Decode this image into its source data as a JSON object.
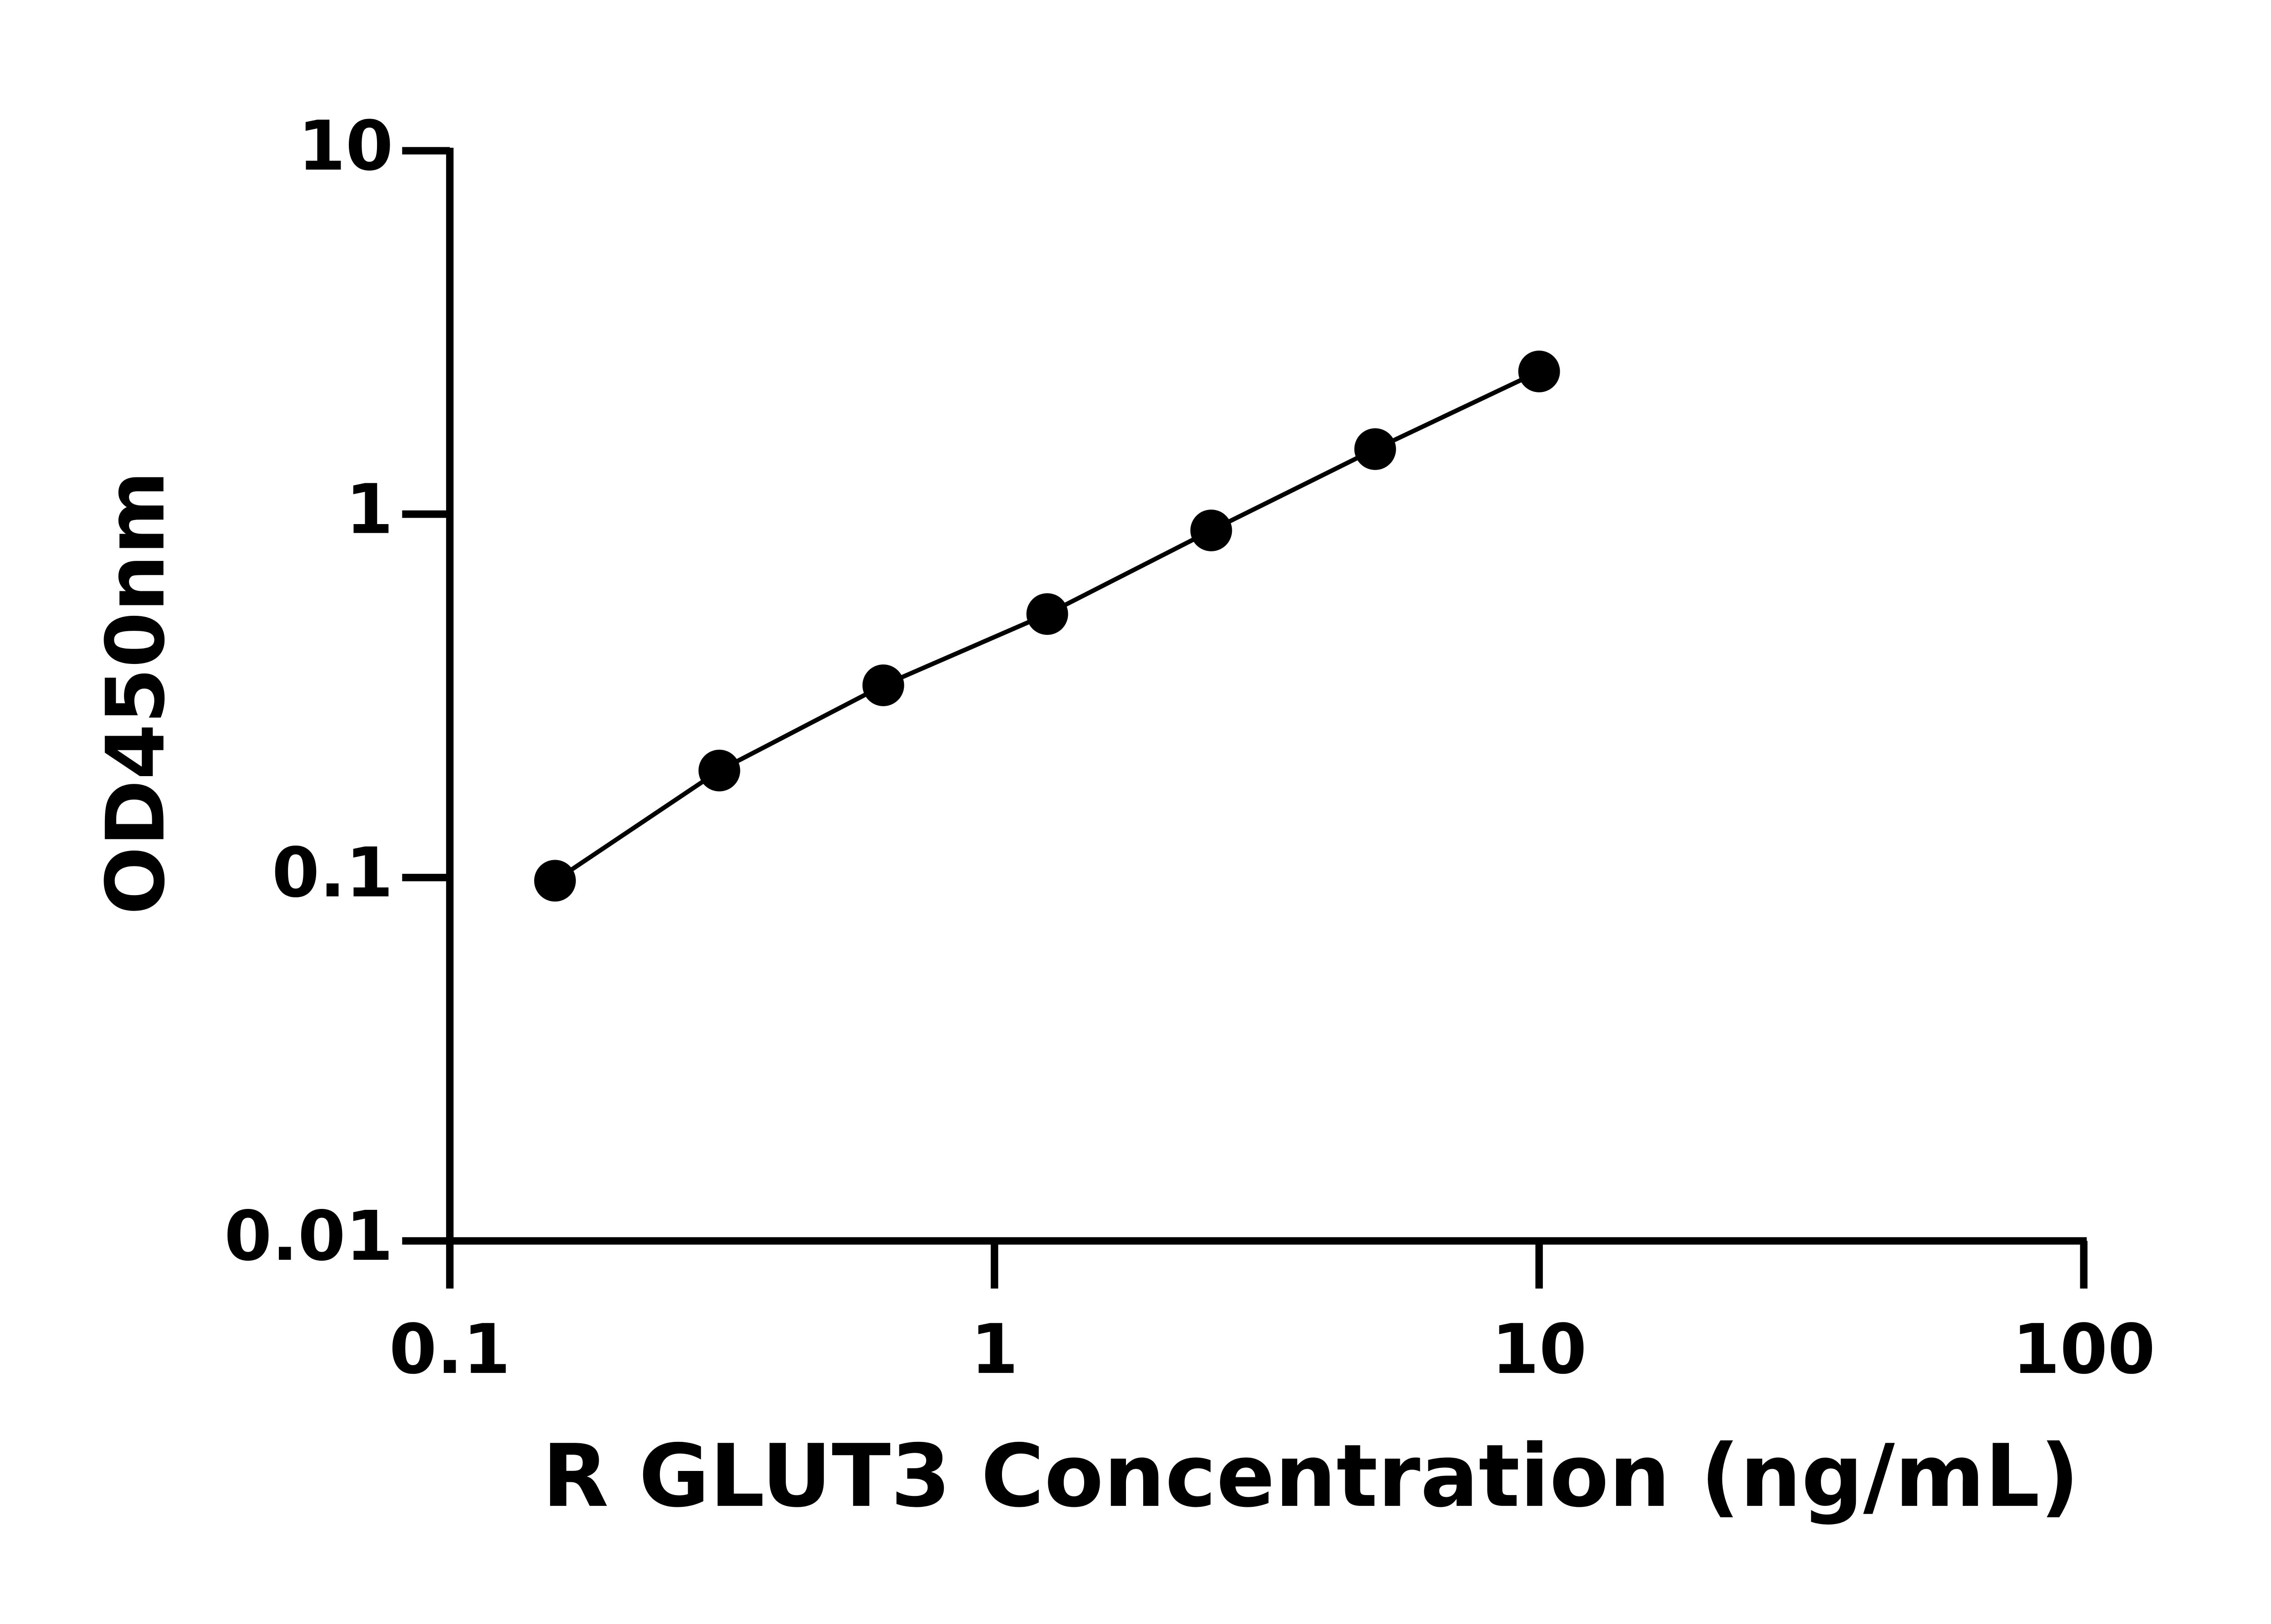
{
  "chart_data": {
    "type": "scatter",
    "x_label": "R GLUT3 Concentration (ng/mL)",
    "y_label": "OD450nm",
    "x": [
      0.156,
      0.3125,
      0.625,
      1.25,
      2.5,
      5,
      10
    ],
    "series": [
      {
        "color": "#000000",
        "values": [
          0.098,
          0.197,
          0.338,
          0.531,
          0.902,
          1.51,
          2.47
        ]
      }
    ],
    "xlim": [
      0.1,
      100
    ],
    "xticks": [
      0.1,
      1,
      10,
      100
    ],
    "ylim": [
      0.01,
      10
    ],
    "yticks": [
      0.01,
      0.1,
      1,
      10
    ],
    "xscale": "log",
    "yscale": "log",
    "line": true
  }
}
